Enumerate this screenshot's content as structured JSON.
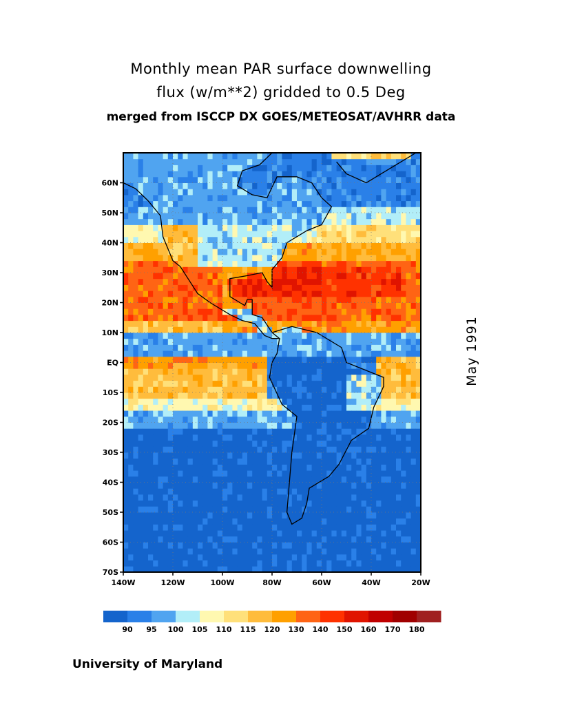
{
  "title": {
    "line1": "Monthly mean PAR surface downwelling",
    "line2": "flux (w/m**2) gridded to 0.5 Deg",
    "line3": "merged from ISCCP DX GOES/METEOSAT/AVHRR data"
  },
  "date_label": "May 1991",
  "credit": "University of Maryland",
  "map": {
    "lon_range": [
      -140,
      -20
    ],
    "lat_range": [
      -70,
      70
    ],
    "lat_labels": [
      "60N",
      "50N",
      "40N",
      "30N",
      "20N",
      "10N",
      "EQ",
      "10S",
      "20S",
      "30S",
      "40S",
      "50S",
      "60S",
      "70S"
    ],
    "lat_values": [
      60,
      50,
      40,
      30,
      20,
      10,
      0,
      -10,
      -20,
      -30,
      -40,
      -50,
      -60,
      -70
    ],
    "lon_labels": [
      "140W",
      "120W",
      "100W",
      "80W",
      "60W",
      "40W",
      "20W"
    ],
    "lon_values": [
      -140,
      -120,
      -100,
      -80,
      -60,
      -40,
      -20
    ],
    "grid": "dotted"
  },
  "colorbar": {
    "labels": [
      "90",
      "95",
      "100",
      "105",
      "110",
      "115",
      "120",
      "130",
      "140",
      "150",
      "160",
      "170",
      "180"
    ],
    "colors": [
      "#1464cc",
      "#2a80e8",
      "#50a4f0",
      "#b2eef8",
      "#fff8b0",
      "#ffe07a",
      "#ffbc3c",
      "#ffa000",
      "#ff6414",
      "#ff3200",
      "#e01400",
      "#c00000",
      "#a00000",
      "#a02020"
    ]
  }
}
